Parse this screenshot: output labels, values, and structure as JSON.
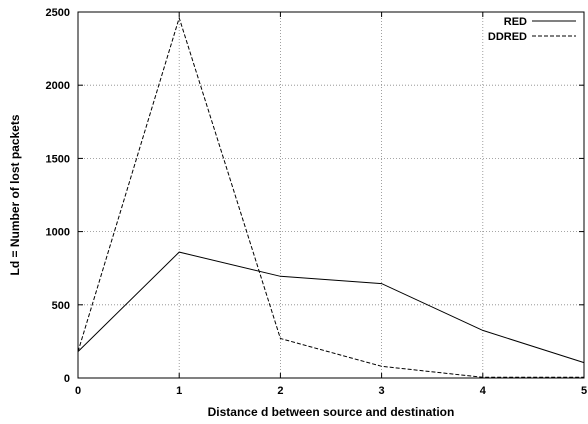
{
  "chart_data": {
    "type": "line",
    "xlabel": "Distance d between source and destination",
    "ylabel": "Ld = Number of lost packets",
    "xlim": [
      0,
      5
    ],
    "ylim": [
      0,
      2500
    ],
    "xticks": [
      "0",
      "1",
      "2",
      "3",
      "4",
      "5"
    ],
    "yticks": [
      "0",
      "500",
      "1000",
      "1500",
      "2000",
      "2500"
    ],
    "grid": true,
    "legend_position": "top-right",
    "x": [
      0,
      1,
      2,
      3,
      4,
      5
    ],
    "series": [
      {
        "name": "RED",
        "style": "solid",
        "values": [
          180,
          860,
          695,
          645,
          325,
          105
        ]
      },
      {
        "name": "DDRED",
        "style": "dashed",
        "values": [
          180,
          2460,
          270,
          80,
          5,
          5
        ]
      }
    ]
  }
}
